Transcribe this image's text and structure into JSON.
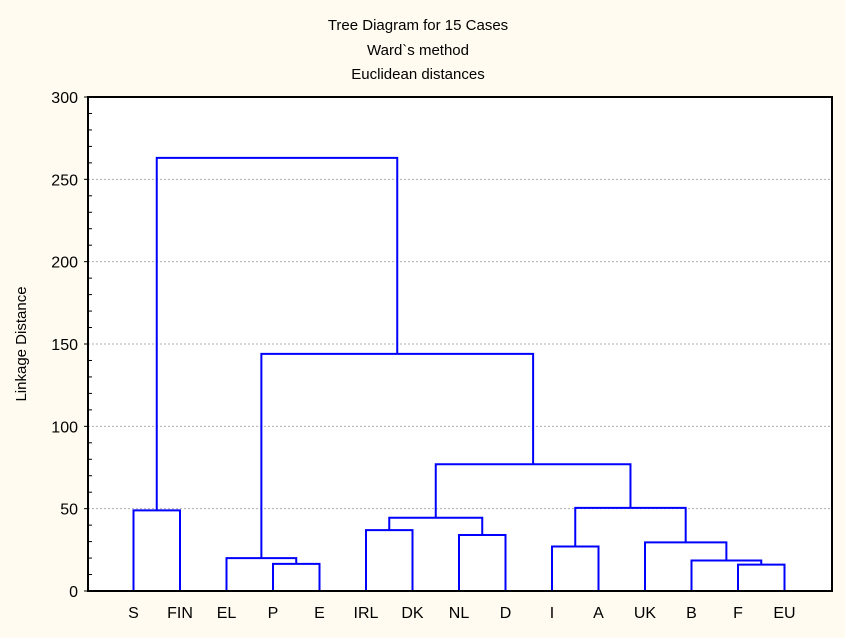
{
  "chart_data": {
    "type": "dendrogram",
    "title": "Tree Diagram for 15 Cases",
    "subtitle": [
      "Ward`s method",
      "Euclidean distances"
    ],
    "ylabel": "Linkage Distance",
    "xlabel": "",
    "ylim": [
      0,
      300
    ],
    "yticks": [
      0,
      50,
      100,
      150,
      200,
      250,
      300
    ],
    "grid": true,
    "line_color": "#0000ff",
    "leaves": [
      "S",
      "FIN",
      "EL",
      "P",
      "E",
      "IRL",
      "DK",
      "NL",
      "D",
      "I",
      "A",
      "UK",
      "B",
      "F",
      "EU"
    ],
    "merges": [
      {
        "left": 0,
        "right": 1,
        "height": 49
      },
      {
        "left": 3,
        "right": 4,
        "height": 16.5
      },
      {
        "left": 2,
        "right": 16,
        "height": 20
      },
      {
        "left": 5,
        "right": 6,
        "height": 37
      },
      {
        "left": 7,
        "right": 8,
        "height": 34
      },
      {
        "left": 18,
        "right": 19,
        "height": 44.5
      },
      {
        "left": 9,
        "right": 10,
        "height": 27
      },
      {
        "left": 13,
        "right": 14,
        "height": 16
      },
      {
        "left": 12,
        "right": 22,
        "height": 18.5
      },
      {
        "left": 11,
        "right": 23,
        "height": 29.5
      },
      {
        "left": 21,
        "right": 24,
        "height": 50.5
      },
      {
        "left": 20,
        "right": 25,
        "height": 77
      },
      {
        "left": 17,
        "right": 26,
        "height": 144
      },
      {
        "left": 15,
        "right": 27,
        "height": 263
      }
    ]
  }
}
